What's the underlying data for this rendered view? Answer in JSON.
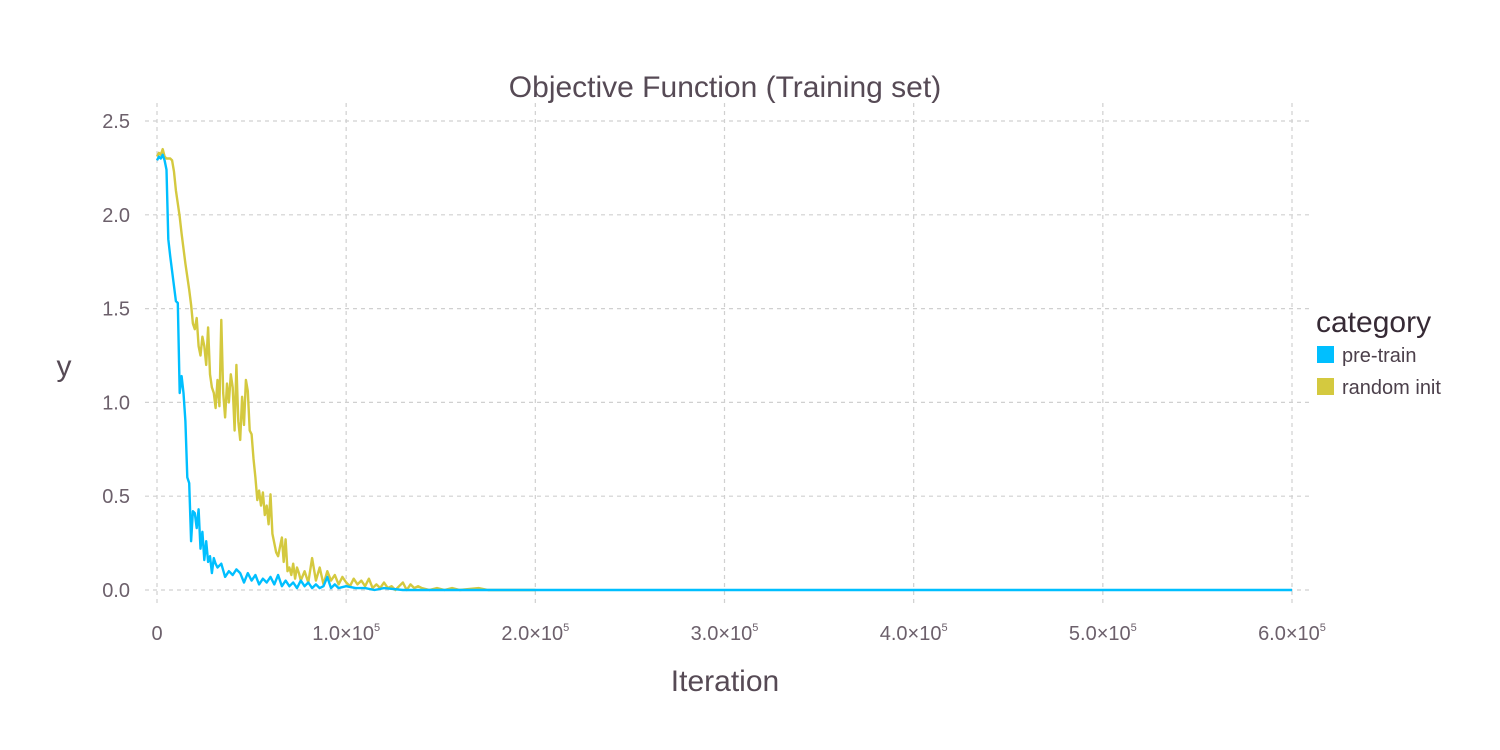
{
  "chart_data": {
    "type": "line",
    "title": "Objective Function (Training set)",
    "xlabel": "Iteration",
    "ylabel": "y",
    "xlim": [
      0,
      600000
    ],
    "ylim": [
      0,
      2.5
    ],
    "x_ticks": [
      {
        "value": 0,
        "mantissa": "0",
        "exp": ""
      },
      {
        "value": 100000,
        "mantissa": "1.0×10",
        "exp": "5"
      },
      {
        "value": 200000,
        "mantissa": "2.0×10",
        "exp": "5"
      },
      {
        "value": 300000,
        "mantissa": "3.0×10",
        "exp": "5"
      },
      {
        "value": 400000,
        "mantissa": "4.0×10",
        "exp": "5"
      },
      {
        "value": 500000,
        "mantissa": "5.0×10",
        "exp": "5"
      },
      {
        "value": 600000,
        "mantissa": "6.0×10",
        "exp": "5"
      }
    ],
    "y_ticks": [
      {
        "value": 0,
        "label": "0.0"
      },
      {
        "value": 0.5,
        "label": "0.5"
      },
      {
        "value": 1,
        "label": "1.0"
      },
      {
        "value": 1.5,
        "label": "1.5"
      },
      {
        "value": 2,
        "label": "2.0"
      },
      {
        "value": 2.5,
        "label": "2.5"
      }
    ],
    "grid": true,
    "legend": {
      "title": "category",
      "position": "right"
    },
    "series": [
      {
        "name": "pre-train",
        "color": "#00bfff",
        "points": [
          [
            0,
            2.29
          ],
          [
            1000,
            2.31
          ],
          [
            2000,
            2.3
          ],
          [
            3000,
            2.32
          ],
          [
            4000,
            2.29
          ],
          [
            5000,
            2.24
          ],
          [
            6000,
            1.87
          ],
          [
            7000,
            1.78
          ],
          [
            8000,
            1.7
          ],
          [
            9000,
            1.62
          ],
          [
            10000,
            1.54
          ],
          [
            11000,
            1.53
          ],
          [
            12000,
            1.05
          ],
          [
            13000,
            1.14
          ],
          [
            14000,
            1.05
          ],
          [
            15000,
            0.9
          ],
          [
            16000,
            0.6
          ],
          [
            17000,
            0.57
          ],
          [
            18000,
            0.26
          ],
          [
            19000,
            0.42
          ],
          [
            20000,
            0.41
          ],
          [
            21000,
            0.33
          ],
          [
            22000,
            0.43
          ],
          [
            23000,
            0.22
          ],
          [
            24000,
            0.31
          ],
          [
            25000,
            0.16
          ],
          [
            26000,
            0.26
          ],
          [
            27000,
            0.15
          ],
          [
            28000,
            0.18
          ],
          [
            29000,
            0.09
          ],
          [
            30000,
            0.17
          ],
          [
            31000,
            0.14
          ],
          [
            32000,
            0.12
          ],
          [
            34000,
            0.14
          ],
          [
            36000,
            0.07
          ],
          [
            38000,
            0.1
          ],
          [
            40000,
            0.08
          ],
          [
            42000,
            0.11
          ],
          [
            44000,
            0.09
          ],
          [
            46000,
            0.04
          ],
          [
            48000,
            0.09
          ],
          [
            50000,
            0.05
          ],
          [
            52000,
            0.08
          ],
          [
            54000,
            0.03
          ],
          [
            56000,
            0.06
          ],
          [
            58000,
            0.04
          ],
          [
            60000,
            0.07
          ],
          [
            62000,
            0.03
          ],
          [
            64000,
            0.08
          ],
          [
            66000,
            0.02
          ],
          [
            68000,
            0.05
          ],
          [
            70000,
            0.02
          ],
          [
            72000,
            0.04
          ],
          [
            74000,
            0.01
          ],
          [
            76000,
            0.05
          ],
          [
            78000,
            0.02
          ],
          [
            80000,
            0.04
          ],
          [
            82000,
            0.01
          ],
          [
            84000,
            0.03
          ],
          [
            86000,
            0.01
          ],
          [
            88000,
            0.02
          ],
          [
            90000,
            0.07
          ],
          [
            92000,
            0.01
          ],
          [
            94000,
            0.03
          ],
          [
            96000,
            0.01
          ],
          [
            100000,
            0.02
          ],
          [
            105000,
            0.01
          ],
          [
            110000,
            0.01
          ],
          [
            115000,
            0.0
          ],
          [
            120000,
            0.01
          ],
          [
            130000,
            0.0
          ],
          [
            150000,
            0.0
          ],
          [
            200000,
            0.0
          ],
          [
            260000,
            0.0
          ],
          [
            300000,
            0.0
          ],
          [
            400000,
            0.0
          ],
          [
            500000,
            0.0
          ],
          [
            600000,
            0.0
          ]
        ]
      },
      {
        "name": "random init",
        "color": "#d4c93f",
        "points": [
          [
            0,
            2.31
          ],
          [
            1000,
            2.33
          ],
          [
            2000,
            2.32
          ],
          [
            3000,
            2.35
          ],
          [
            4000,
            2.31
          ],
          [
            5000,
            2.3
          ],
          [
            6000,
            2.3
          ],
          [
            7000,
            2.3
          ],
          [
            8000,
            2.29
          ],
          [
            9000,
            2.23
          ],
          [
            10000,
            2.13
          ],
          [
            11000,
            2.06
          ],
          [
            12000,
            1.99
          ],
          [
            13000,
            1.9
          ],
          [
            14000,
            1.82
          ],
          [
            15000,
            1.74
          ],
          [
            16000,
            1.67
          ],
          [
            17000,
            1.6
          ],
          [
            18000,
            1.52
          ],
          [
            19000,
            1.42
          ],
          [
            20000,
            1.39
          ],
          [
            21000,
            1.45
          ],
          [
            22000,
            1.3
          ],
          [
            23000,
            1.25
          ],
          [
            24000,
            1.35
          ],
          [
            25000,
            1.3
          ],
          [
            26000,
            1.2
          ],
          [
            27000,
            1.4
          ],
          [
            28000,
            1.15
          ],
          [
            29000,
            1.08
          ],
          [
            30000,
            1.05
          ],
          [
            31000,
            0.97
          ],
          [
            32000,
            1.12
          ],
          [
            33000,
            0.98
          ],
          [
            34000,
            1.44
          ],
          [
            35000,
            1.05
          ],
          [
            36000,
            0.92
          ],
          [
            37000,
            1.1
          ],
          [
            38000,
            1.0
          ],
          [
            39000,
            1.15
          ],
          [
            40000,
            1.08
          ],
          [
            41000,
            0.85
          ],
          [
            42000,
            1.2
          ],
          [
            43000,
            0.9
          ],
          [
            44000,
            0.8
          ],
          [
            45000,
            1.03
          ],
          [
            46000,
            0.88
          ],
          [
            47000,
            1.12
          ],
          [
            48000,
            1.06
          ],
          [
            49000,
            0.85
          ],
          [
            50000,
            0.83
          ],
          [
            51000,
            0.7
          ],
          [
            52000,
            0.6
          ],
          [
            53000,
            0.48
          ],
          [
            54000,
            0.53
          ],
          [
            55000,
            0.45
          ],
          [
            56000,
            0.52
          ],
          [
            57000,
            0.4
          ],
          [
            58000,
            0.45
          ],
          [
            59000,
            0.35
          ],
          [
            60000,
            0.51
          ],
          [
            61000,
            0.3
          ],
          [
            62000,
            0.25
          ],
          [
            63000,
            0.2
          ],
          [
            64000,
            0.18
          ],
          [
            65000,
            0.23
          ],
          [
            66000,
            0.28
          ],
          [
            67000,
            0.15
          ],
          [
            68000,
            0.27
          ],
          [
            69000,
            0.1
          ],
          [
            70000,
            0.12
          ],
          [
            71000,
            0.08
          ],
          [
            72000,
            0.14
          ],
          [
            73000,
            0.06
          ],
          [
            74000,
            0.12
          ],
          [
            75000,
            0.09
          ],
          [
            76000,
            0.05
          ],
          [
            78000,
            0.1
          ],
          [
            80000,
            0.04
          ],
          [
            82000,
            0.17
          ],
          [
            84000,
            0.05
          ],
          [
            86000,
            0.12
          ],
          [
            88000,
            0.03
          ],
          [
            90000,
            0.1
          ],
          [
            92000,
            0.05
          ],
          [
            94000,
            0.08
          ],
          [
            96000,
            0.03
          ],
          [
            98000,
            0.07
          ],
          [
            100000,
            0.04
          ],
          [
            102000,
            0.02
          ],
          [
            104000,
            0.06
          ],
          [
            106000,
            0.03
          ],
          [
            108000,
            0.05
          ],
          [
            110000,
            0.02
          ],
          [
            112000,
            0.06
          ],
          [
            114000,
            0.01
          ],
          [
            116000,
            0.03
          ],
          [
            118000,
            0.01
          ],
          [
            120000,
            0.04
          ],
          [
            122000,
            0.01
          ],
          [
            124000,
            0.02
          ],
          [
            126000,
            0.0
          ],
          [
            128000,
            0.02
          ],
          [
            130000,
            0.04
          ],
          [
            132000,
            0.0
          ],
          [
            134000,
            0.03
          ],
          [
            136000,
            0.01
          ],
          [
            138000,
            0.02
          ],
          [
            140000,
            0.01
          ],
          [
            144000,
            0.0
          ],
          [
            148000,
            0.01
          ],
          [
            152000,
            0.0
          ],
          [
            156000,
            0.01
          ],
          [
            160000,
            0.0
          ],
          [
            170000,
            0.01
          ],
          [
            175000,
            0.0
          ],
          [
            190000,
            0.0
          ],
          [
            200000,
            0.0
          ]
        ]
      }
    ]
  }
}
